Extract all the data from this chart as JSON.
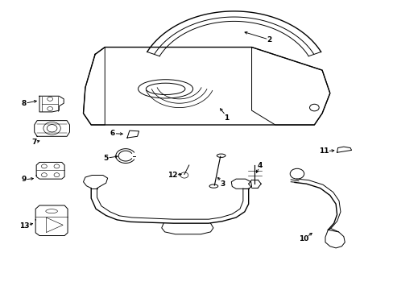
{
  "bg_color": "#ffffff",
  "line_color": "#000000",
  "fig_width": 4.89,
  "fig_height": 3.6,
  "dpi": 100,
  "label_data": [
    [
      1,
      0.575,
      0.595,
      0.555,
      0.635
    ],
    [
      2,
      0.685,
      0.865,
      0.615,
      0.895
    ],
    [
      3,
      0.565,
      0.365,
      0.548,
      0.395
    ],
    [
      4,
      0.66,
      0.43,
      0.648,
      0.395
    ],
    [
      5,
      0.268,
      0.455,
      0.305,
      0.462
    ],
    [
      6,
      0.285,
      0.54,
      0.318,
      0.538
    ],
    [
      7,
      0.085,
      0.51,
      0.105,
      0.518
    ],
    [
      8,
      0.058,
      0.645,
      0.098,
      0.655
    ],
    [
      9,
      0.058,
      0.38,
      0.09,
      0.385
    ],
    [
      10,
      0.772,
      0.175,
      0.8,
      0.2
    ],
    [
      11,
      0.825,
      0.478,
      0.858,
      0.482
    ],
    [
      12,
      0.438,
      0.395,
      0.468,
      0.4
    ],
    [
      13,
      0.06,
      0.22,
      0.088,
      0.23
    ]
  ]
}
